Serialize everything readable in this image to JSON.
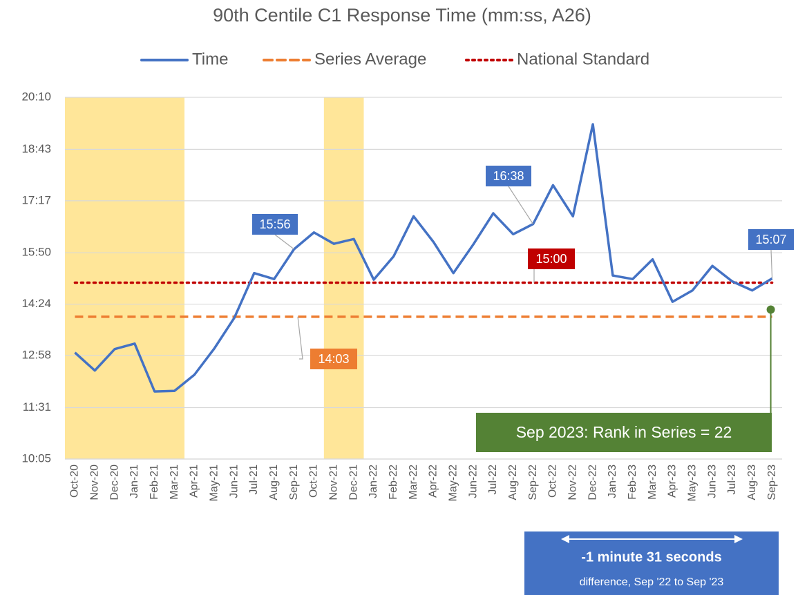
{
  "chart_data": {
    "type": "line",
    "title": "90th Centile C1 Response Time (mm:ss, A26)",
    "categories": [
      "Oct-20",
      "Nov-20",
      "Dec-20",
      "Jan-21",
      "Feb-21",
      "Mar-21",
      "Apr-21",
      "May-21",
      "Jun-21",
      "Jul-21",
      "Aug-21",
      "Sep-21",
      "Oct-21",
      "Nov-21",
      "Dec-21",
      "Jan-22",
      "Feb-22",
      "Mar-22",
      "Apr-22",
      "May-22",
      "Jun-22",
      "Jul-22",
      "Aug-22",
      "Sep-22",
      "Oct-22",
      "Nov-22",
      "Dec-22",
      "Jan-23",
      "Feb-23",
      "Mar-23",
      "Apr-23",
      "May-23",
      "Jun-23",
      "Jul-23",
      "Aug-23",
      "Sep-23"
    ],
    "series": [
      {
        "name": "Time",
        "color": "#4472c4",
        "values": [
          783,
          753,
          789,
          798,
          718,
          719,
          746,
          790,
          841,
          916,
          906,
          956,
          984,
          965,
          973,
          905,
          944,
          1011,
          968,
          916,
          964,
          1016,
          981,
          998,
          1063,
          1011,
          1165,
          912,
          906,
          939,
          868,
          887,
          928,
          902,
          887,
          907
        ],
        "value_labels": [
          null,
          null,
          null,
          null,
          null,
          null,
          null,
          null,
          null,
          null,
          null,
          "15:56",
          null,
          null,
          null,
          null,
          null,
          null,
          null,
          null,
          null,
          null,
          null,
          "16:38",
          null,
          null,
          null,
          null,
          null,
          null,
          null,
          null,
          null,
          null,
          null,
          "15:07"
        ]
      }
    ],
    "reference_lines": [
      {
        "name": "Series Average",
        "value": 843,
        "label": "14:03",
        "color": "#ed7d31",
        "style": "dashed"
      },
      {
        "name": "National Standard",
        "value": 900,
        "label": "15:00",
        "color": "#c00000",
        "style": "dotted"
      }
    ],
    "highlight_ranges": [
      {
        "from": "Oct-20",
        "to": "Mar-21"
      },
      {
        "from": "Nov-21",
        "to": "Dec-21"
      }
    ],
    "highlight_color": "#ffe699",
    "ylim": [
      605,
      1210
    ],
    "yticks": [
      {
        "value": 605,
        "label": "10:05"
      },
      {
        "value": 691,
        "label": "11:31"
      },
      {
        "value": 778,
        "label": "12:58"
      },
      {
        "value": 864,
        "label": "14:24"
      },
      {
        "value": 950,
        "label": "15:50"
      },
      {
        "value": 1037,
        "label": "17:17"
      },
      {
        "value": 1123,
        "label": "18:43"
      },
      {
        "value": 1210,
        "label": "20:10"
      }
    ],
    "grid": true,
    "legend": "top",
    "rank_annotation": {
      "text": "Sep 2023: Rank in Series = 22",
      "value": 855,
      "color": "#548235"
    },
    "difference_box": {
      "title": "-1 minute 31 seconds",
      "subtitle": "difference, Sep '22 to Sep '23",
      "color": "#4472c4"
    }
  }
}
